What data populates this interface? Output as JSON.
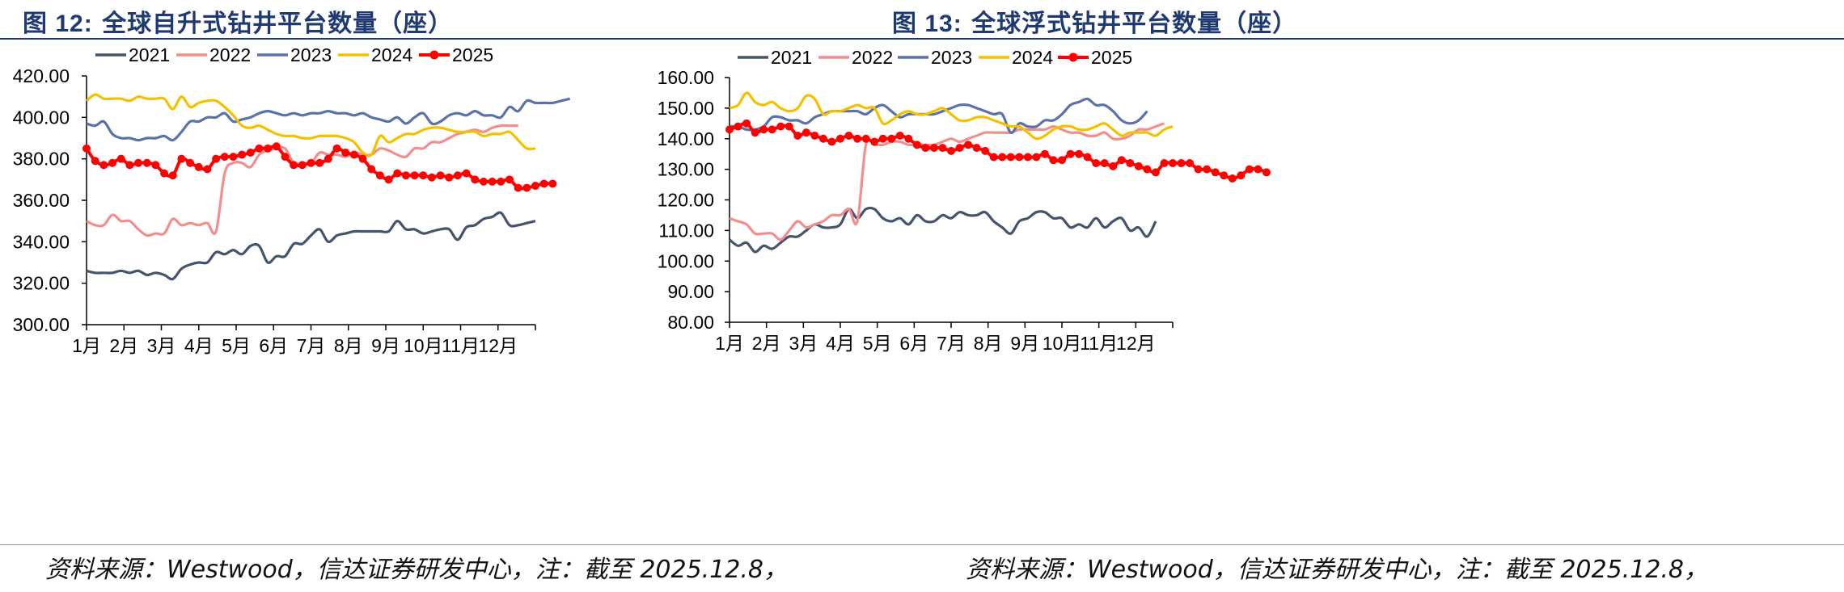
{
  "figures": [
    {
      "title_num": "图 12:",
      "title_text": "全球自升式钻井平台数量（座）",
      "source": "资料来源：Westwood，信达证券研发中心，注：截至 2025.12.8，"
    },
    {
      "title_num": "图 13:",
      "title_text": "全球浮式钻井平台数量（座）",
      "source": "资料来源：Westwood，信达证券研发中心，注：截至 2025.12.8，"
    }
  ],
  "colors": {
    "2021": "#44546a",
    "2022": "#f28e8e",
    "2023": "#5b72a8",
    "2024": "#f5c000",
    "2025": "#ff0000",
    "title": "#1f3a73"
  },
  "chart_data": [
    {
      "type": "line",
      "title": "全球自升式钻井平台数量（座）",
      "x_tick_labels": [
        "1月",
        "2月",
        "3月",
        "4月",
        "5月",
        "6月",
        "7月",
        "8月",
        "9月",
        "10月",
        "11月",
        "12月"
      ],
      "x_unit": "week",
      "xlim": [
        1,
        53
      ],
      "ylim": [
        300,
        420
      ],
      "y_ticks": [
        300,
        320,
        340,
        360,
        380,
        400,
        420
      ],
      "y_tick_labels": [
        "300.00",
        "320.00",
        "340.00",
        "360.00",
        "380.00",
        "400.00",
        "420.00"
      ],
      "grid": false,
      "legend_position": "top",
      "series": [
        {
          "name": "2021",
          "color_key": "2021",
          "marker": false,
          "values": [
            326,
            325,
            325,
            325,
            326,
            325,
            326,
            324,
            325,
            324,
            322,
            327,
            329,
            330,
            330,
            335,
            334,
            336,
            334,
            338,
            338,
            330,
            333,
            333,
            339,
            339,
            343,
            346,
            340,
            343,
            344,
            345,
            345,
            345,
            345,
            345,
            350,
            346,
            346,
            344,
            345,
            346,
            346,
            341,
            347,
            348,
            351,
            352,
            354,
            348,
            348,
            349,
            350
          ]
        },
        {
          "name": "2022",
          "color_key": "2022",
          "marker": false,
          "values": [
            350,
            348,
            348,
            353,
            350,
            350,
            346,
            343,
            344,
            344,
            351,
            348,
            349,
            348,
            349,
            345,
            373,
            378,
            378,
            376,
            382,
            384,
            385,
            385,
            378,
            378,
            378,
            383,
            382,
            382,
            381,
            383,
            382,
            382,
            385,
            384,
            382,
            381,
            385,
            385,
            388,
            388,
            390,
            392,
            393,
            394,
            393,
            395,
            396,
            396,
            396
          ]
        },
        {
          "name": "2023",
          "color_key": "2023",
          "marker": false,
          "values": [
            397,
            396,
            398,
            392,
            390,
            390,
            389,
            390,
            390,
            391,
            389,
            393,
            398,
            398,
            400,
            400,
            402,
            398,
            399,
            400,
            402,
            403,
            402,
            401,
            402,
            401,
            402,
            402,
            403,
            402,
            402,
            401,
            402,
            400,
            399,
            398,
            400,
            397,
            400,
            402,
            397,
            398,
            401,
            402,
            401,
            403,
            401,
            401,
            400,
            405,
            403,
            408,
            407,
            407,
            407,
            408,
            409
          ]
        },
        {
          "name": "2024",
          "color_key": "2024",
          "marker": false,
          "values": [
            408,
            411,
            409,
            409,
            409,
            408,
            410,
            409,
            409,
            409,
            404,
            410,
            405,
            407,
            408,
            408,
            405,
            401,
            396,
            395,
            396,
            394,
            392,
            391,
            391,
            390,
            390,
            391,
            391,
            391,
            390,
            388,
            383,
            382,
            391,
            388,
            390,
            392,
            392,
            394,
            395,
            395,
            394,
            393,
            393,
            393,
            391,
            392,
            392,
            393,
            389,
            385,
            385
          ]
        },
        {
          "name": "2025",
          "color_key": "2025",
          "marker": true,
          "values": [
            385,
            379,
            377,
            378,
            380,
            377,
            378,
            378,
            377,
            373,
            372,
            380,
            378,
            376,
            375,
            380,
            381,
            381,
            382,
            383,
            385,
            385,
            386,
            381,
            377,
            377,
            378,
            378,
            380,
            385,
            383,
            382,
            380,
            375,
            372,
            370,
            373,
            372,
            372,
            372,
            371,
            372,
            371,
            372,
            373,
            370,
            369,
            369,
            369,
            370,
            366,
            366,
            367,
            368,
            368
          ]
        }
      ]
    },
    {
      "type": "line",
      "title": "全球浮式钻井平台数量（座）",
      "x_tick_labels": [
        "1月",
        "2月",
        "3月",
        "4月",
        "5月",
        "6月",
        "7月",
        "8月",
        "9月",
        "10月",
        "11月",
        "12月"
      ],
      "x_unit": "week",
      "xlim": [
        1,
        53
      ],
      "ylim": [
        80,
        160
      ],
      "y_ticks": [
        80,
        90,
        100,
        110,
        120,
        130,
        140,
        150,
        160
      ],
      "y_tick_labels": [
        "80.00",
        "90.00",
        "100.00",
        "110.00",
        "120.00",
        "130.00",
        "140.00",
        "150.00",
        "160.00"
      ],
      "grid": false,
      "legend_position": "top",
      "series": [
        {
          "name": "2021",
          "color_key": "2021",
          "marker": false,
          "values": [
            107,
            105,
            106,
            103,
            105,
            104,
            106,
            108,
            108,
            110,
            112,
            111,
            111,
            112,
            117,
            114,
            117,
            117,
            114,
            113,
            114,
            112,
            115,
            113,
            113,
            115,
            114,
            116,
            115,
            115,
            116,
            113,
            111,
            109,
            113,
            114,
            116,
            116,
            114,
            114,
            111,
            112,
            111,
            114,
            111,
            113,
            114,
            110,
            111,
            108,
            113
          ]
        },
        {
          "name": "2022",
          "color_key": "2022",
          "marker": false,
          "values": [
            114,
            113,
            112,
            109,
            109,
            109,
            107,
            110,
            113,
            111,
            112,
            113,
            115,
            115,
            117,
            113,
            138,
            138,
            138,
            139,
            139,
            138,
            138,
            138,
            138,
            139,
            140,
            139,
            140,
            141,
            142,
            142,
            142,
            142,
            143,
            143,
            143,
            143,
            144,
            143,
            142,
            142,
            141,
            141,
            142,
            140,
            140,
            141,
            143,
            143,
            144,
            145
          ]
        },
        {
          "name": "2023",
          "color_key": "2023",
          "marker": false,
          "values": [
            144,
            144,
            143,
            143,
            144,
            147,
            147,
            146,
            146,
            145,
            147,
            148,
            149,
            149,
            149,
            149,
            148,
            150,
            151,
            149,
            147,
            148,
            148,
            148,
            148,
            149,
            150,
            151,
            151,
            150,
            149,
            148,
            148,
            142,
            145,
            144,
            144,
            146,
            146,
            148,
            151,
            152,
            153,
            151,
            151,
            149,
            146,
            145,
            146,
            149
          ]
        },
        {
          "name": "2024",
          "color_key": "2024",
          "marker": false,
          "values": [
            150,
            151,
            155,
            152,
            151,
            152,
            150,
            149,
            150,
            154,
            153,
            148,
            149,
            149,
            150,
            151,
            150,
            150,
            145,
            146,
            148,
            149,
            148,
            148,
            149,
            150,
            148,
            146,
            146,
            147,
            147,
            146,
            145,
            144,
            144,
            142,
            140,
            141,
            143,
            144,
            144,
            143,
            143,
            144,
            145,
            143,
            141,
            142,
            142,
            142,
            141,
            143,
            144
          ]
        },
        {
          "name": "2025",
          "color_key": "2025",
          "marker": true,
          "values": [
            143,
            144,
            145,
            142,
            143,
            143,
            144,
            144,
            141,
            142,
            141,
            140,
            139,
            140,
            141,
            140,
            140,
            139,
            140,
            140,
            141,
            140,
            138,
            137,
            137,
            137,
            136,
            137,
            138,
            137,
            136,
            134,
            134,
            134,
            134,
            134,
            134,
            135,
            133,
            133,
            135,
            135,
            134,
            132,
            132,
            131,
            133,
            132,
            131,
            130,
            129,
            132,
            132,
            132,
            132,
            130,
            130,
            129,
            128,
            127,
            128,
            130,
            130,
            129
          ]
        }
      ]
    }
  ]
}
